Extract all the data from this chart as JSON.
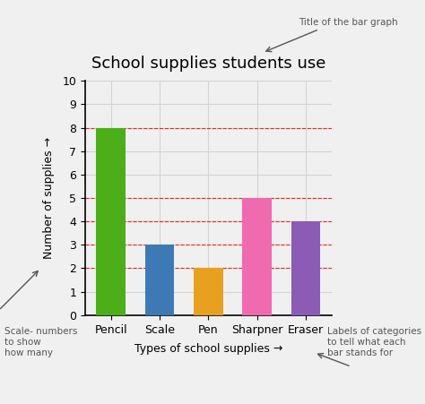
{
  "title": "School supplies students use",
  "categories": [
    "Pencil",
    "Scale",
    "Pen",
    "Sharpner",
    "Eraser"
  ],
  "values": [
    8,
    3,
    2,
    5,
    4
  ],
  "bar_colors": [
    "#4caf1a",
    "#3d7ab5",
    "#e8a020",
    "#f06ab0",
    "#8b5bb5"
  ],
  "xlabel": "Types of school supplies →",
  "ylabel": "Number of supplies →",
  "ylim": [
    0,
    10
  ],
  "yticks": [
    0,
    1,
    2,
    3,
    4,
    5,
    6,
    7,
    8,
    9,
    10
  ],
  "red_dashed_lines": [
    2,
    3,
    4,
    5,
    8
  ],
  "bg_color": "#f0f0f0",
  "annotation_title": "Title of the bar graph",
  "annotation_scale": "Scale- numbers\nto show\nhow many",
  "annotation_labels": "Labels of categories\nto tell what each\nbar stands for",
  "title_fontsize": 13,
  "axis_label_fontsize": 9,
  "tick_fontsize": 9,
  "annotation_fontsize": 7.5
}
